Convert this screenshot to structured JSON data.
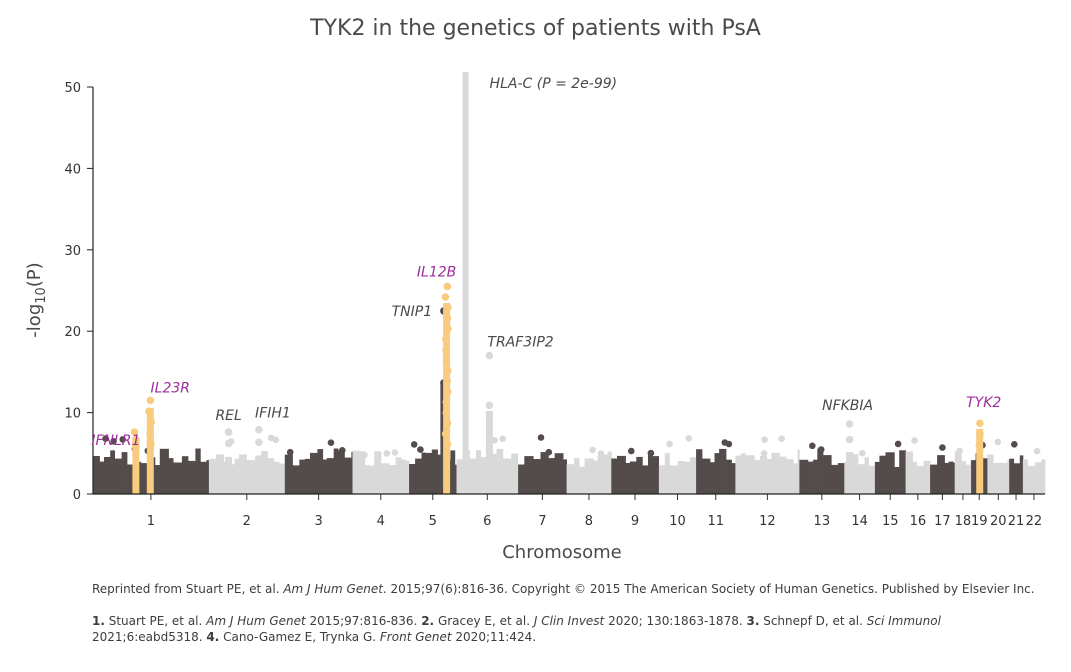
{
  "chart_data": {
    "type": "scatter",
    "title": "TYK2 in the genetics of patients with PsA",
    "xlabel": "Chromosome",
    "ylabel_prefix": "-log",
    "ylabel_sub": "10",
    "ylabel_suffix": "(P)",
    "ylim": [
      0,
      50
    ],
    "yticks": [
      "0",
      "10",
      "20",
      "30",
      "40",
      "50"
    ],
    "grid": false,
    "colors": {
      "dark": "#544b4b",
      "light": "#d9d9d9",
      "highlight": "#f8cb7e",
      "purple": "#9b2f9b",
      "text": "#4a4a4a"
    },
    "chromosomes": [
      {
        "label": "1",
        "start": 0.0,
        "end": 0.1278,
        "height": 4.8
      },
      {
        "label": "2",
        "start": 0.1278,
        "end": 0.2115,
        "height": 4.8
      },
      {
        "label": "3",
        "start": 0.2115,
        "end": 0.2862,
        "height": 4.8
      },
      {
        "label": "4",
        "start": 0.2862,
        "end": 0.3486,
        "height": 4.8
      },
      {
        "label": "5",
        "start": 0.3486,
        "end": 0.4009,
        "height": 4.8
      },
      {
        "label": "6",
        "start": 0.4009,
        "end": 0.4689,
        "height": 4.8
      },
      {
        "label": "7",
        "start": 0.4689,
        "end": 0.5224,
        "height": 4.8
      },
      {
        "label": "8",
        "start": 0.5224,
        "end": 0.5716,
        "height": 4.6
      },
      {
        "label": "9",
        "start": 0.5716,
        "end": 0.6241,
        "height": 4.8
      },
      {
        "label": "10",
        "start": 0.6241,
        "end": 0.6652,
        "height": 4.8
      },
      {
        "label": "11",
        "start": 0.6652,
        "end": 0.7085,
        "height": 4.8
      },
      {
        "label": "12",
        "start": 0.7085,
        "end": 0.7791,
        "height": 4.8
      },
      {
        "label": "13",
        "start": 0.7791,
        "end": 0.8286,
        "height": 4.8
      },
      {
        "label": "14",
        "start": 0.8286,
        "end": 0.8624,
        "height": 4.8
      },
      {
        "label": "15",
        "start": 0.8624,
        "end": 0.8962,
        "height": 4.6
      },
      {
        "label": "16",
        "start": 0.8962,
        "end": 0.9233,
        "height": 4.6
      },
      {
        "label": "17",
        "start": 0.9233,
        "end": 0.9504,
        "height": 4.6
      },
      {
        "label": "18",
        "start": 0.9504,
        "end": 0.9685,
        "height": 4.6
      },
      {
        "label": "19",
        "start": 0.9685,
        "end": 0.9865,
        "height": 4.6
      },
      {
        "label": "20",
        "start": 0.9865,
        "end": 1.0105,
        "height": 4.6
      },
      {
        "label": "21",
        "start": 1.0105,
        "end": 1.0256,
        "height": 4.6
      },
      {
        "label": "22",
        "start": 1.0256,
        "end": 1.05,
        "height": 4.6
      }
    ],
    "highlight_loci": [
      {
        "gene": "IFNLR1",
        "pos": 0.0473,
        "peak": 7.6,
        "label_color": "purple",
        "highlight": true
      },
      {
        "gene": "IL23R",
        "pos": 0.0632,
        "peak": 11.5,
        "label_color": "purple",
        "highlight": true
      },
      {
        "gene": "IL12B",
        "pos": 0.39,
        "peak": 25.5,
        "label_color": "purple",
        "highlight": true
      },
      {
        "gene": "TYK2",
        "pos": 0.978,
        "peak": 8.7,
        "label_color": "purple",
        "highlight": true
      }
    ],
    "other_loci": [
      {
        "gene": "REL",
        "pos": 0.1496,
        "peak": 7.6
      },
      {
        "gene": "IFIH1",
        "pos": 0.183,
        "peak": 7.9
      },
      {
        "gene": "TNIP1",
        "pos": 0.387,
        "peak": 22.5
      },
      {
        "gene": "HLA-C (P = 2e-99)",
        "pos": 0.4109,
        "peak": 52
      },
      {
        "gene": "TRAF3IP2",
        "pos": 0.4372,
        "peak": 17.0
      },
      {
        "gene": "NFKBIA",
        "pos": 0.8345,
        "peak": 8.6
      }
    ]
  },
  "citation": {
    "prefix": "Reprinted from Stuart PE, et al. ",
    "journal": "Am J Hum Genet",
    "suffix": ". 2015;97(6):816-36. Copyright © 2015 The American Society of Human Genetics. Published by Elsevier Inc."
  },
  "references": [
    {
      "num": "1.",
      "authors": " Stuart PE, et al. ",
      "journal": "Am J Hum Genet",
      "rest": " 2015;97:816-836. "
    },
    {
      "num": "2.",
      "authors": " Gracey E, et al. ",
      "journal": "J Clin Invest",
      "rest": " 2020; 130:1863-1878. "
    },
    {
      "num": "3.",
      "authors": " Schnepf D, et al. ",
      "journal": "Sci Immunol",
      "rest": " 2021;6:eabd5318. "
    },
    {
      "num": "4.",
      "authors": " Cano-Gamez E, Trynka G. ",
      "journal": "Front Genet",
      "rest": " 2020;11:424."
    }
  ]
}
